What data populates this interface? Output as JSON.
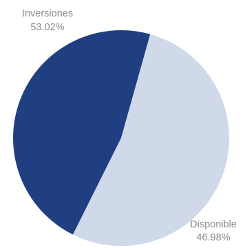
{
  "chart_data": {
    "type": "pie",
    "slices": [
      {
        "label": "Inversiones",
        "value": 53.02,
        "display": "53.02%",
        "color": "#cfd9ea"
      },
      {
        "label": "Disponible",
        "value": 46.98,
        "display": "46.98%",
        "color": "#1f3f80"
      }
    ],
    "legend": "none",
    "labels_position": "outside"
  }
}
